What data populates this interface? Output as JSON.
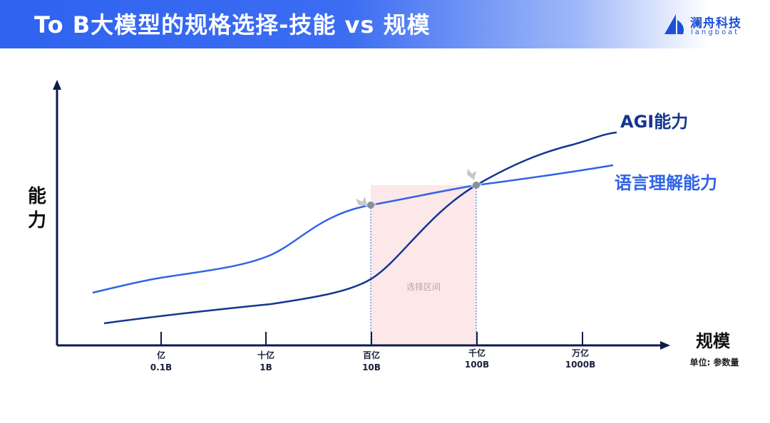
{
  "header": {
    "title": "To B大模型的规格选择-技能 vs 规模",
    "brand_name": "澜舟科技",
    "brand_sub": "langboat",
    "gradient_start": "#2f63f0",
    "gradient_end": "#ffffff"
  },
  "chart": {
    "y_axis_label_line1": "能",
    "y_axis_label_line2": "力",
    "x_axis_label": "规模",
    "unit_note": "单位: 参数量",
    "selection_label": "选择区间",
    "ticks": [
      {
        "cn": "亿",
        "en": "0.1B"
      },
      {
        "cn": "十亿",
        "en": "1B"
      },
      {
        "cn": "百亿",
        "en": "10B"
      },
      {
        "cn": "千亿",
        "en": "100B"
      },
      {
        "cn": "万亿",
        "en": "1000B"
      }
    ],
    "series": [
      {
        "name": "AGI能力",
        "color": "#14358f"
      },
      {
        "name": "语言理解能力",
        "color": "#2f64e6"
      }
    ],
    "selection_color": "#fce7e9",
    "axis_color": "#0d1b4c"
  }
}
